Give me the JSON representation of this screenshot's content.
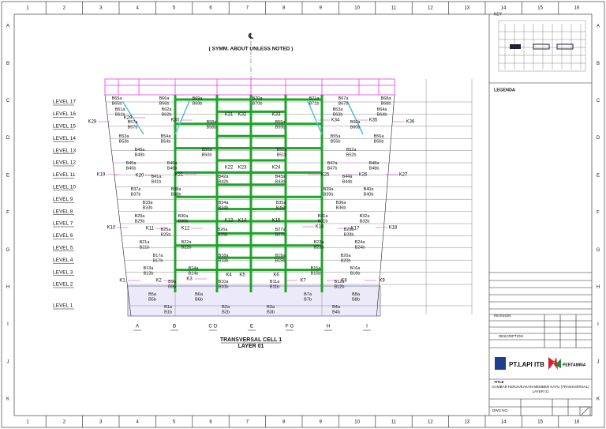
{
  "grid_columns": [
    "1",
    "2",
    "3",
    "4",
    "5",
    "6",
    "7",
    "8",
    "9",
    "10",
    "11",
    "12",
    "13",
    "14",
    "15",
    "16"
  ],
  "grid_rows": [
    "A",
    "B",
    "C",
    "D",
    "E",
    "F",
    "G",
    "H",
    "I",
    "J",
    "K"
  ],
  "drawing": {
    "centerline": "℄",
    "note": "( SYMM. ABOUT UNLESS NOTED )",
    "title": "TRANSVERSAL CELL 1",
    "subtitle": "LAYER 01",
    "levels": [
      "LEVEL 17",
      "LEVEL 16",
      "LEVEL 15",
      "LEVEL 14",
      "LEVEL 13",
      "LEVEL 12",
      "LEVEL 11",
      "LEVEL 10",
      "LEVEL 9",
      "LEVEL 8",
      "LEVEL 7",
      "LEVEL 6",
      "LEVEL 5",
      "LEVEL 4",
      "LEVEL 3",
      "LEVEL 2",
      "LEVEL 1"
    ],
    "axes": [
      "A",
      "B",
      "C D",
      "E",
      "F G",
      "H",
      "I"
    ],
    "members": [
      [
        "B65a",
        "B65b"
      ],
      [
        "B66a",
        "B66b"
      ],
      [
        "B69a",
        "B69b"
      ],
      [
        "B70a",
        "B70b"
      ],
      [
        "B71a",
        "B71b"
      ],
      [
        "B67a",
        "B67b"
      ],
      [
        "B68a",
        "B68b"
      ],
      [
        "B61a",
        "B61b"
      ],
      [
        "B62a",
        "B62b"
      ],
      [
        "B63a",
        "B63b"
      ],
      [
        "B64a",
        "B64b"
      ],
      [
        "B57a",
        "B57b"
      ],
      [
        "B58a",
        "B58b"
      ],
      [
        "B59a",
        "B59b"
      ],
      [
        "B60a",
        "B60b"
      ],
      [
        "B53a",
        "B53b"
      ],
      [
        "B54a",
        "B54b"
      ],
      [
        "B55a",
        "B55b"
      ],
      [
        "B56a",
        "B56b"
      ],
      [
        "B49a",
        "B49b"
      ],
      [
        "B50a",
        "B50b"
      ],
      [
        "B51a",
        "B51b"
      ],
      [
        "B52a",
        "B52b"
      ],
      [
        "B45a",
        "B45b"
      ],
      [
        "B46a",
        "B46b"
      ],
      [
        "B47a",
        "B47b"
      ],
      [
        "B48a",
        "B48b"
      ],
      [
        "B41a",
        "B41b"
      ],
      [
        "B42a",
        "B42b"
      ],
      [
        "B43a",
        "B43b"
      ],
      [
        "B44a",
        "B44b"
      ],
      [
        "B37a",
        "B37b"
      ],
      [
        "B38a",
        "B38b"
      ],
      [
        "B39a",
        "B39b"
      ],
      [
        "B40a",
        "B40b"
      ],
      [
        "B33a",
        "B33b"
      ],
      [
        "B34a",
        "B34b"
      ],
      [
        "B35a",
        "B35b"
      ],
      [
        "B36a",
        "B36b"
      ],
      [
        "B29a",
        "B29b"
      ],
      [
        "B30a",
        "B30b"
      ],
      [
        "B31a",
        "B31b"
      ],
      [
        "B32a",
        "B32b"
      ],
      [
        "B25a",
        "B25b"
      ],
      [
        "B26a",
        "B26b"
      ],
      [
        "B27a",
        "B27b"
      ],
      [
        "B28a",
        "B28b"
      ],
      [
        "B21a",
        "B21b"
      ],
      [
        "B22a",
        "B22b"
      ],
      [
        "B23a",
        "B23b"
      ],
      [
        "B24a",
        "B24b"
      ],
      [
        "B17a",
        "B17b"
      ],
      [
        "B18a",
        "B18b"
      ],
      [
        "B19a",
        "B19b"
      ],
      [
        "B20a",
        "B20b"
      ],
      [
        "B13a",
        "B13b"
      ],
      [
        "B14a",
        "B14b"
      ],
      [
        "B15a",
        "B15b"
      ],
      [
        "B16a",
        "B16b"
      ],
      [
        "B9a",
        "B9b"
      ],
      [
        "B10a",
        "B10b"
      ],
      [
        "B11a",
        "B11b"
      ],
      [
        "B12a",
        "B12b"
      ],
      [
        "B5a",
        "B5b"
      ],
      [
        "B6a",
        "B6b"
      ],
      [
        "B7a",
        "B7b"
      ],
      [
        "B8a",
        "B8b"
      ],
      [
        "B1a",
        "B1b"
      ],
      [
        "B2a",
        "B2b"
      ],
      [
        "B3a",
        "B3b"
      ],
      [
        "B4a",
        "B4b"
      ]
    ],
    "connections": [
      "K28",
      "K29",
      "K30",
      "K31",
      "K32",
      "K33",
      "K34",
      "K35",
      "K36",
      "K19",
      "K20",
      "K21",
      "K22",
      "K23",
      "K24",
      "K25",
      "K26",
      "K27",
      "K10",
      "K11",
      "K12",
      "K13",
      "K14",
      "K15",
      "K16",
      "K17",
      "K18",
      "K1",
      "K2",
      "K3",
      "K4",
      "K5",
      "K6",
      "K7",
      "K8",
      "K9"
    ]
  },
  "title_block": {
    "key": "KEY",
    "legend": "LEGENDA",
    "company": "PT.LAPI ITB",
    "client": "PERTAMINA",
    "title_label": "TITLE",
    "title": "GAMBAR KERJA/KAKAN MEMBER KAYU (TRANSVERSAL)",
    "layer": "LAYER 01",
    "description": "DESCRIPTION",
    "revision": "REVISION",
    "drawing_no": "DWG NO."
  }
}
